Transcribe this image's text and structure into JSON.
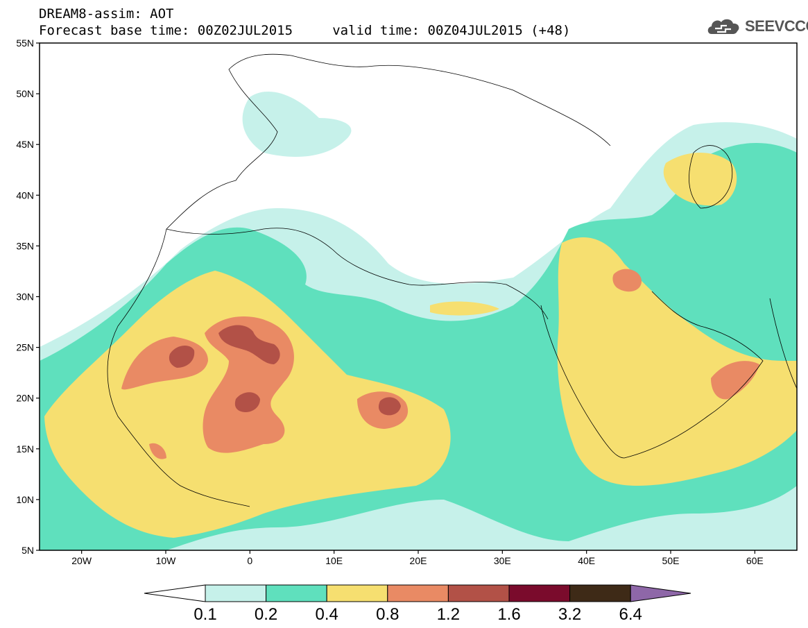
{
  "header": {
    "title_line1": "DREAM8-assim: AOT",
    "title_line2": "Forecast base time: 00Z02JUL2015     valid time: 00Z04JUL2015 (+48)",
    "logo_text": "SEEVCCC",
    "logo_icon": "cloud-logo-icon"
  },
  "map": {
    "lon_range": [
      -25,
      65
    ],
    "lat_range": [
      5,
      55
    ],
    "lat_ticks": [
      "55N",
      "50N",
      "45N",
      "40N",
      "35N",
      "30N",
      "25N",
      "20N",
      "15N",
      "10N",
      "5N"
    ],
    "lon_ticks": [
      "20W",
      "10W",
      "0",
      "10E",
      "20E",
      "30E",
      "40E",
      "50E",
      "60E"
    ]
  },
  "colorbar": {
    "labels": [
      "0.1",
      "0.2",
      "0.4",
      "0.8",
      "1.2",
      "1.6",
      "3.2",
      "6.4"
    ],
    "colors": [
      "#ffffff",
      "#c6f1ea",
      "#5fe0bd",
      "#f6df70",
      "#e98a64",
      "#b25147",
      "#7a0b2c",
      "#3e2a17",
      "#8e67a8"
    ]
  }
}
